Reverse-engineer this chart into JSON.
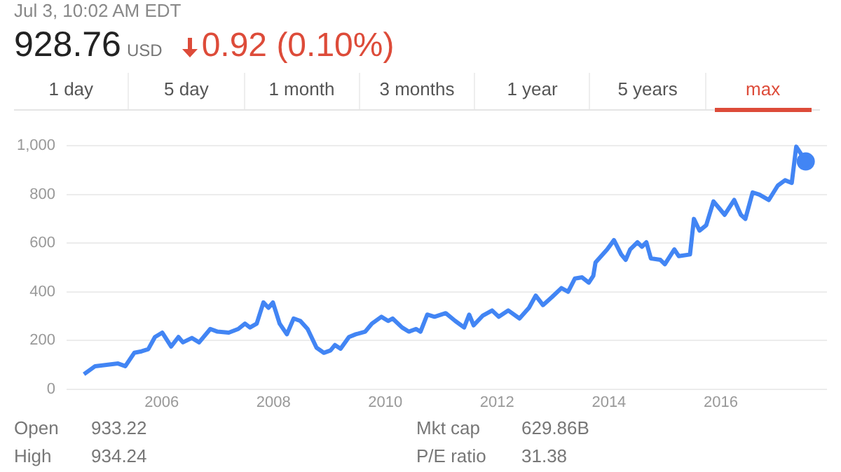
{
  "chart_data": {
    "type": "line",
    "subtitle": "Jul 3, 10:02 AM EDT",
    "title": "928.76",
    "annotations": [
      "USD",
      "0.92 (0.10%)",
      "1 day",
      "5 day",
      "1 month",
      "3 months",
      "1 year",
      "5 years",
      "max",
      "Open",
      "933.22",
      "High",
      "934.24",
      "Mkt cap",
      "629.86B",
      "P/E ratio",
      "31.38"
    ],
    "x": [
      2004.61,
      2004.81,
      2005.22,
      2005.35,
      2005.51,
      2005.64,
      2005.76,
      2005.88,
      2006.01,
      2006.17,
      2006.3,
      2006.38,
      2006.54,
      2006.67,
      2006.87,
      2007.0,
      2007.2,
      2007.37,
      2007.49,
      2007.58,
      2007.7,
      2007.82,
      2007.91,
      2007.99,
      2008.11,
      2008.24,
      2008.36,
      2008.48,
      2008.61,
      2008.77,
      2008.9,
      2009.02,
      2009.1,
      2009.2,
      2009.35,
      2009.47,
      2009.64,
      2009.76,
      2009.93,
      2010.05,
      2010.13,
      2010.3,
      2010.42,
      2010.55,
      2010.63,
      2010.75,
      2010.88,
      2011.08,
      2011.25,
      2011.41,
      2011.5,
      2011.58,
      2011.74,
      2011.91,
      2012.03,
      2012.2,
      2012.4,
      2012.57,
      2012.69,
      2012.82,
      2012.98,
      2013.15,
      2013.27,
      2013.39,
      2013.52,
      2013.64,
      2013.72,
      2013.76,
      2013.97,
      2014.09,
      2014.22,
      2014.3,
      2014.38,
      2014.51,
      2014.59,
      2014.67,
      2014.75,
      2014.92,
      2015.0,
      2015.17,
      2015.25,
      2015.45,
      2015.52,
      2015.62,
      2015.74,
      2015.87,
      2015.95,
      2016.07,
      2016.24,
      2016.36,
      2016.44,
      2016.57,
      2016.69,
      2016.86,
      2017.02,
      2017.15,
      2017.27,
      2017.35,
      2017.43,
      2017.52
    ],
    "series": [
      {
        "color": "#4285f4",
        "values": [
          61,
          94,
          105,
          94,
          149,
          155,
          164,
          214,
          232,
          175,
          214,
          192,
          210,
          192,
          247,
          236,
          232,
          247,
          269,
          253,
          269,
          356,
          334,
          356,
          269,
          225,
          290,
          280,
          247,
          170,
          149,
          159,
          181,
          166,
          214,
          225,
          236,
          269,
          297,
          280,
          290,
          253,
          236,
          247,
          236,
          306,
          297,
          312,
          280,
          253,
          306,
          262,
          301,
          323,
          297,
          323,
          290,
          334,
          384,
          345,
          378,
          415,
          400,
          454,
          459,
          437,
          465,
          520,
          574,
          612,
          553,
          531,
          574,
          603,
          585,
          603,
          537,
          531,
          513,
          574,
          546,
          553,
          699,
          651,
          673,
          771,
          749,
          716,
          777,
          716,
          699,
          808,
          799,
          777,
          836,
          858,
          847,
          996,
          968,
          935
        ]
      }
    ],
    "xlim": [
      2004.3,
      2017.9
    ],
    "xticks": [
      2006,
      2008,
      2010,
      2012,
      2014,
      2016
    ],
    "ylim": [
      0,
      1000
    ],
    "yticks": [
      {
        "value": 0,
        "label": "0"
      },
      {
        "value": 200,
        "label": "200"
      },
      {
        "value": 400,
        "label": "400"
      },
      {
        "value": 600,
        "label": "600"
      },
      {
        "value": 800,
        "label": "800"
      },
      {
        "value": 1000,
        "label": "1,000"
      }
    ],
    "grid": "y",
    "legend": false
  }
}
